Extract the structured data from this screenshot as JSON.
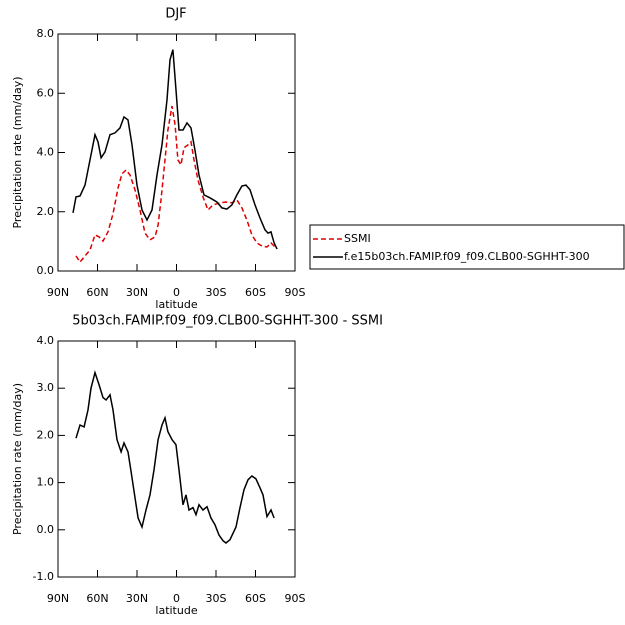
{
  "chart_data": [
    {
      "type": "line",
      "title": "DJF",
      "xlabel": "latitude",
      "ylabel": "Precipitation rate (mm/day)",
      "xlim": [
        90,
        -90
      ],
      "xticks": [
        {
          "value": 90,
          "label": "90N"
        },
        {
          "value": 60,
          "label": "60N"
        },
        {
          "value": 30,
          "label": "30N"
        },
        0,
        {
          "value": -30,
          "label": "30S"
        },
        {
          "value": -60,
          "label": "60S"
        },
        {
          "value": -90,
          "label": "90S"
        }
      ],
      "ylim": [
        0,
        8
      ],
      "yticks": [
        {
          "value": 0,
          "label": "0.0"
        },
        {
          "value": 2,
          "label": "2.0"
        },
        {
          "value": 4,
          "label": "4.0"
        },
        {
          "value": 6,
          "label": "6.0"
        },
        {
          "value": 8,
          "label": "8.0"
        }
      ],
      "legend": "right",
      "series": [
        {
          "name": "SSMI",
          "color": "#e00000",
          "dash": true,
          "x": [
            76.3,
            73.3,
            69.5,
            65.7,
            61.9,
            58.8,
            55.8,
            52.0,
            48.2,
            44.4,
            41.4,
            38.3,
            35.3,
            31.5,
            27.7,
            23.9,
            20.1,
            16.3,
            14.0,
            11.8,
            8.7,
            6.5,
            3.4,
            1.1,
            -1.1,
            -3.4,
            -5.7,
            -8.7,
            -11.0,
            -13.3,
            -16.3,
            -20.1,
            -23.9,
            -27.7,
            -33.0,
            -37.6,
            -42.1,
            -45.9,
            -49.7,
            -53.5,
            -57.3,
            -61.1,
            -64.9,
            -68.7,
            -71.8,
            -75.5
          ],
          "values": [
            0.51,
            0.3,
            0.51,
            0.71,
            1.22,
            1.15,
            1.01,
            1.32,
            1.93,
            2.8,
            3.28,
            3.41,
            3.24,
            2.74,
            2.06,
            1.28,
            1.05,
            1.15,
            1.55,
            2.4,
            3.75,
            4.76,
            5.57,
            4.93,
            3.75,
            3.58,
            4.16,
            4.26,
            4.36,
            3.75,
            3.07,
            2.5,
            2.06,
            2.23,
            2.3,
            2.33,
            2.3,
            2.4,
            2.13,
            1.72,
            1.22,
            0.95,
            0.84,
            0.81,
            0.95,
            0.78
          ]
        },
        {
          "name": "f.e15b03ch.FAMIP.f09_f09.CLB00-SGHHT-300",
          "color": "#000000",
          "dash": false,
          "x": [
            78.6,
            76.3,
            73.3,
            69.5,
            65.7,
            61.9,
            59.6,
            57.3,
            54.3,
            50.5,
            46.7,
            42.9,
            39.9,
            36.8,
            33.8,
            30.0,
            26.2,
            22.4,
            18.6,
            14.8,
            11.0,
            7.2,
            4.9,
            2.7,
            0.4,
            -1.9,
            -4.9,
            -8.0,
            -11.0,
            -14.0,
            -17.1,
            -20.9,
            -25.4,
            -30.7,
            -34.5,
            -38.3,
            -42.1,
            -45.9,
            -49.7,
            -52.8,
            -55.8,
            -59.6,
            -63.4,
            -67.2,
            -69.5,
            -71.8,
            -74.1,
            -76.4
          ],
          "values": [
            1.96,
            2.5,
            2.53,
            2.9,
            3.75,
            4.6,
            4.36,
            3.82,
            4.02,
            4.6,
            4.66,
            4.83,
            5.2,
            5.1,
            4.26,
            2.9,
            2.06,
            1.72,
            2.06,
            3.24,
            4.26,
            5.78,
            7.13,
            7.47,
            6.11,
            4.76,
            4.76,
            5.0,
            4.83,
            4.09,
            3.24,
            2.57,
            2.47,
            2.33,
            2.13,
            2.09,
            2.23,
            2.57,
            2.87,
            2.9,
            2.74,
            2.23,
            1.79,
            1.39,
            1.28,
            1.32,
            0.95,
            0.74
          ]
        }
      ]
    },
    {
      "type": "line",
      "title": "5b03ch.FAMIP.f09_f09.CLB00-SGHHT-300 - SSMI",
      "xlabel": "latitude",
      "ylabel": "Precipitation rate (mm/day)",
      "xlim": [
        90,
        -90
      ],
      "xticks": [
        {
          "value": 90,
          "label": "90N"
        },
        {
          "value": 60,
          "label": "60N"
        },
        {
          "value": 30,
          "label": "30N"
        },
        0,
        {
          "value": -30,
          "label": "30S"
        },
        {
          "value": -60,
          "label": "60S"
        },
        {
          "value": -90,
          "label": "90S"
        }
      ],
      "ylim": [
        -1,
        4
      ],
      "yticks": [
        {
          "value": -1,
          "label": "-1.0"
        },
        {
          "value": 0,
          "label": "0.0"
        },
        {
          "value": 1,
          "label": "1.0"
        },
        {
          "value": 2,
          "label": "2.0"
        },
        {
          "value": 3,
          "label": "3.0"
        },
        {
          "value": 4,
          "label": "4.0"
        }
      ],
      "series": [
        {
          "color": "#000000",
          "dash": false,
          "x": [
            76.3,
            73.3,
            70.2,
            67.2,
            64.9,
            61.9,
            58.8,
            55.8,
            53.5,
            50.5,
            48.2,
            45.2,
            42.1,
            39.9,
            36.8,
            34.5,
            31.5,
            29.2,
            26.2,
            23.2,
            20.1,
            17.1,
            14.0,
            11.0,
            8.7,
            6.5,
            3.4,
            0.4,
            -1.9,
            -4.9,
            -7.2,
            -9.5,
            -12.5,
            -14.8,
            -17.1,
            -20.1,
            -23.2,
            -26.2,
            -29.2,
            -32.3,
            -35.3,
            -37.6,
            -40.6,
            -45.2,
            -48.2,
            -51.3,
            -54.3,
            -57.3,
            -60.3,
            -63.4,
            -65.7,
            -68.7,
            -71.8,
            -74.1
          ],
          "values": [
            1.94,
            2.22,
            2.18,
            2.54,
            3.0,
            3.33,
            3.07,
            2.8,
            2.75,
            2.86,
            2.54,
            1.91,
            1.65,
            1.84,
            1.65,
            1.23,
            0.68,
            0.25,
            0.06,
            0.42,
            0.74,
            1.27,
            1.91,
            2.22,
            2.37,
            2.08,
            1.91,
            1.8,
            1.27,
            0.53,
            0.74,
            0.42,
            0.47,
            0.32,
            0.53,
            0.42,
            0.49,
            0.25,
            0.11,
            -0.11,
            -0.23,
            -0.28,
            -0.21,
            0.06,
            0.47,
            0.85,
            1.06,
            1.14,
            1.08,
            0.89,
            0.74,
            0.28,
            0.42,
            0.25
          ]
        }
      ]
    }
  ]
}
